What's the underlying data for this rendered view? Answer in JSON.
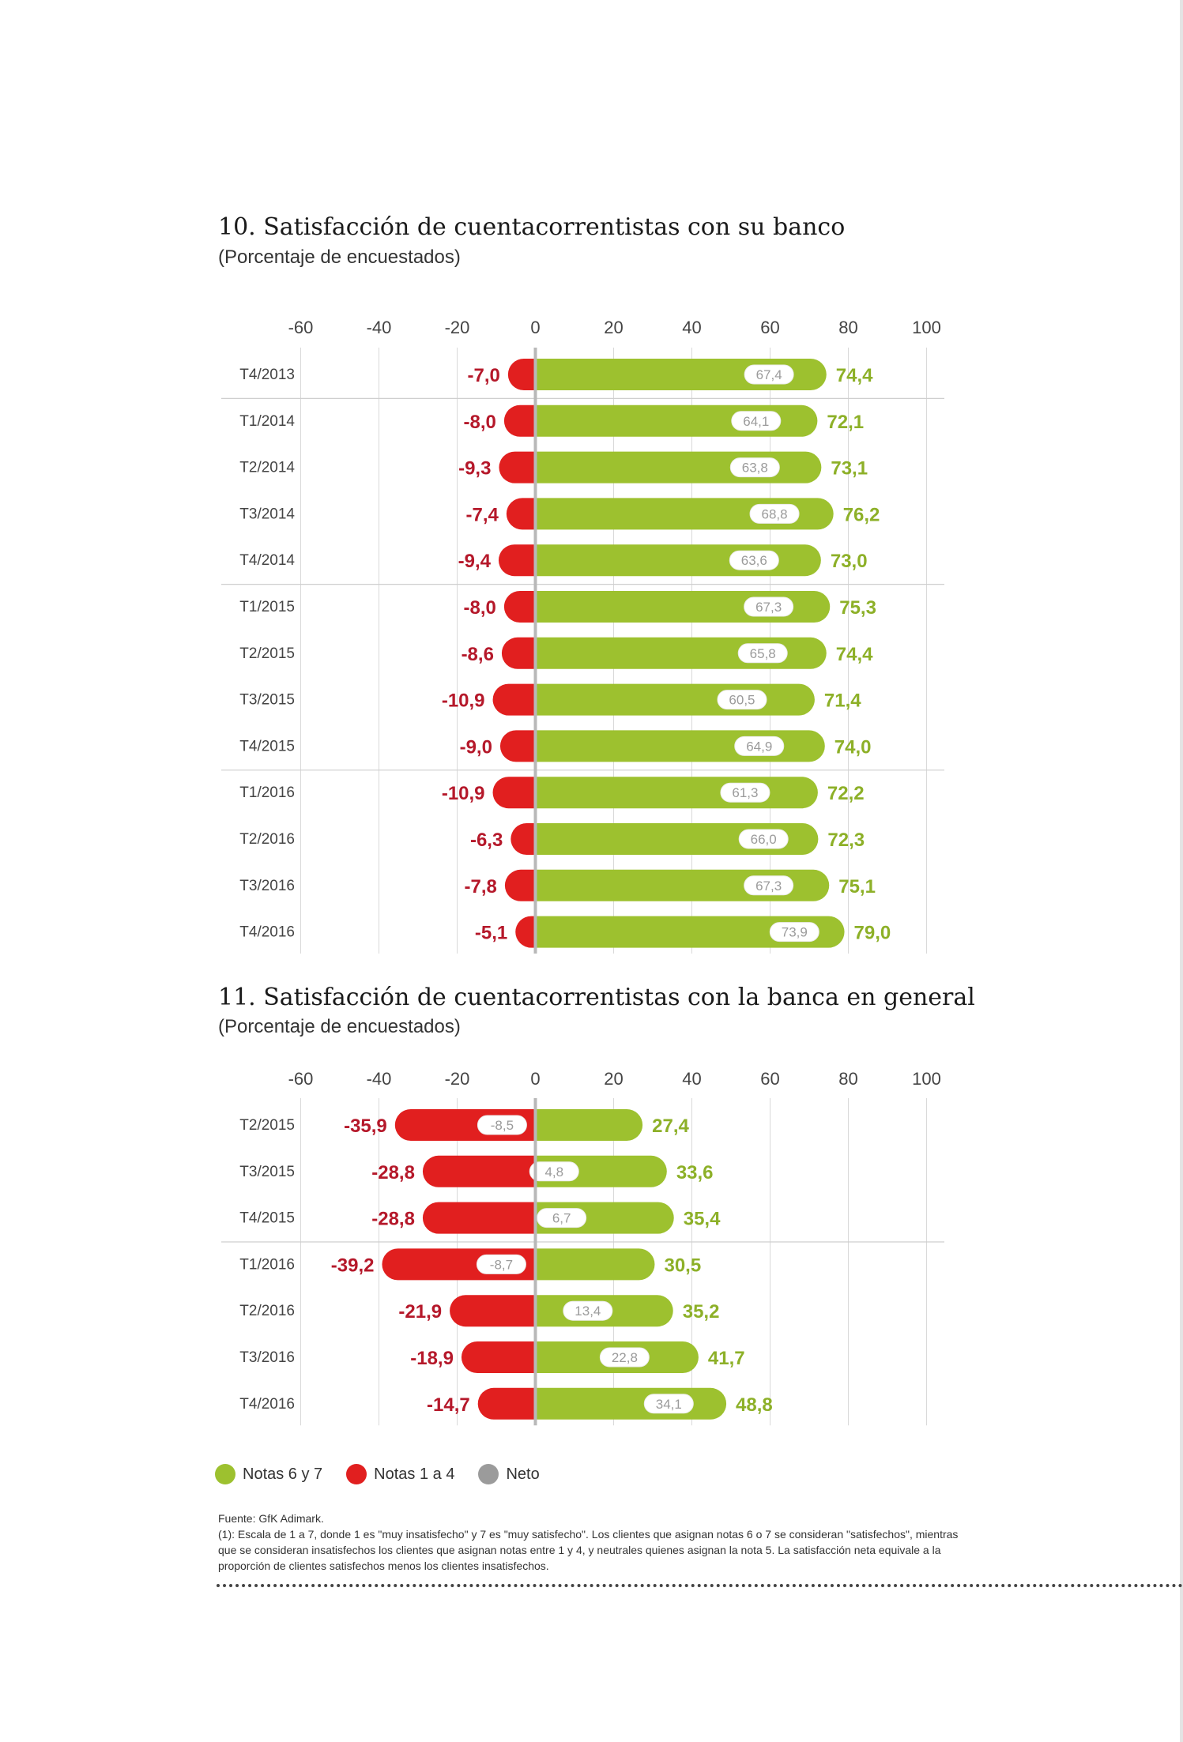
{
  "chart_data": [
    {
      "type": "bar",
      "title": "10. Satisfacción de cuentacorrentistas con su banco",
      "subtitle": "(Porcentaje de encuestados)",
      "xlim": [
        -60,
        100
      ],
      "xticks": [
        "-60",
        "-40",
        "-20",
        "0",
        "20",
        "40",
        "60",
        "80",
        "100"
      ],
      "categories": [
        "T4/2013",
        "T1/2014",
        "T2/2014",
        "T3/2014",
        "T4/2014",
        "T1/2015",
        "T2/2015",
        "T3/2015",
        "T4/2015",
        "T1/2016",
        "T2/2016",
        "T3/2016",
        "T4/2016"
      ],
      "series": [
        {
          "name": "Notas 6 y 7",
          "values": [
            74.4,
            72.1,
            73.1,
            76.2,
            73.0,
            75.3,
            74.4,
            71.4,
            74.0,
            72.2,
            72.3,
            75.1,
            79.0
          ],
          "labels": [
            "74,4",
            "72,1",
            "73,1",
            "76,2",
            "73,0",
            "75,3",
            "74,4",
            "71,4",
            "74,0",
            "72,2",
            "72,3",
            "75,1",
            "79,0"
          ]
        },
        {
          "name": "Notas 1 a 4",
          "values": [
            -7.0,
            -8.0,
            -9.3,
            -7.4,
            -9.4,
            -8.0,
            -8.6,
            -10.9,
            -9.0,
            -10.9,
            -6.3,
            -7.8,
            -5.1
          ],
          "labels": [
            "-7,0",
            "-8,0",
            "-9,3",
            "-7,4",
            "-9,4",
            "-8,0",
            "-8,6",
            "-10,9",
            "-9,0",
            "-10,9",
            "-6,3",
            "-7,8",
            "-5,1"
          ]
        },
        {
          "name": "Neto",
          "values": [
            67.4,
            64.1,
            63.8,
            68.8,
            63.6,
            67.3,
            65.8,
            60.5,
            64.9,
            61.3,
            66.0,
            67.3,
            73.9
          ],
          "labels": [
            "67,4",
            "64,1",
            "63,8",
            "68,8",
            "63,6",
            "67,3",
            "65,8",
            "60,5",
            "64,9",
            "61,3",
            "66,0",
            "67,3",
            "73,9"
          ]
        }
      ],
      "group_separators_after": [
        0,
        4,
        8
      ],
      "grid": true
    },
    {
      "type": "bar",
      "title": "11. Satisfacción de cuentacorrentistas con la banca en general",
      "subtitle": "(Porcentaje de encuestados)",
      "xlim": [
        -60,
        100
      ],
      "xticks": [
        "-60",
        "-40",
        "-20",
        "0",
        "20",
        "40",
        "60",
        "80",
        "100"
      ],
      "categories": [
        "T2/2015",
        "T3/2015",
        "T4/2015",
        "T1/2016",
        "T2/2016",
        "T3/2016",
        "T4/2016"
      ],
      "series": [
        {
          "name": "Notas 6 y 7",
          "values": [
            27.4,
            33.6,
            35.4,
            30.5,
            35.2,
            41.7,
            48.8
          ],
          "labels": [
            "27,4",
            "33,6",
            "35,4",
            "30,5",
            "35,2",
            "41,7",
            "48,8"
          ]
        },
        {
          "name": "Notas 1 a 4",
          "values": [
            -35.9,
            -28.8,
            -28.8,
            -39.2,
            -21.9,
            -18.9,
            -14.7
          ],
          "labels": [
            "-35,9",
            "-28,8",
            "-28,8",
            "-39,2",
            "-21,9",
            "-18,9",
            "-14,7"
          ]
        },
        {
          "name": "Neto",
          "values": [
            -8.5,
            4.8,
            6.7,
            -8.7,
            13.4,
            22.8,
            34.1
          ],
          "labels": [
            "-8,5",
            "4,8",
            "6,7",
            "-8,7",
            "13,4",
            "22,8",
            "34,1"
          ]
        }
      ],
      "group_separators_after": [
        2
      ],
      "grid": true
    }
  ],
  "legend": {
    "items": [
      {
        "label": "Notas 6 y 7",
        "color": "#9dc12f"
      },
      {
        "label": "Notas 1 a 4",
        "color": "#e11f1f"
      },
      {
        "label": "Neto",
        "color": "#9b9b9b"
      }
    ]
  },
  "colors": {
    "positive": "#9dc12f",
    "negative": "#e11f1f",
    "positive_text": "#8db028",
    "negative_text": "#b5182a",
    "net_text": "#9b9b9b"
  },
  "notes": {
    "source": "Fuente: GfK Adimark.",
    "footnote": "(1): Escala de 1 a 7, donde 1 es \"muy insatisfecho\" y 7 es \"muy satisfecho\". Los clientes que asignan notas 6 o 7 se consideran \"satisfechos\", mientras que se consideran insatisfechos los clientes que asignan notas entre 1 y 4, y neutrales quienes asignan la nota 5. La satisfacción neta equivale a la proporción de clientes satisfechos menos los clientes insatisfechos."
  }
}
